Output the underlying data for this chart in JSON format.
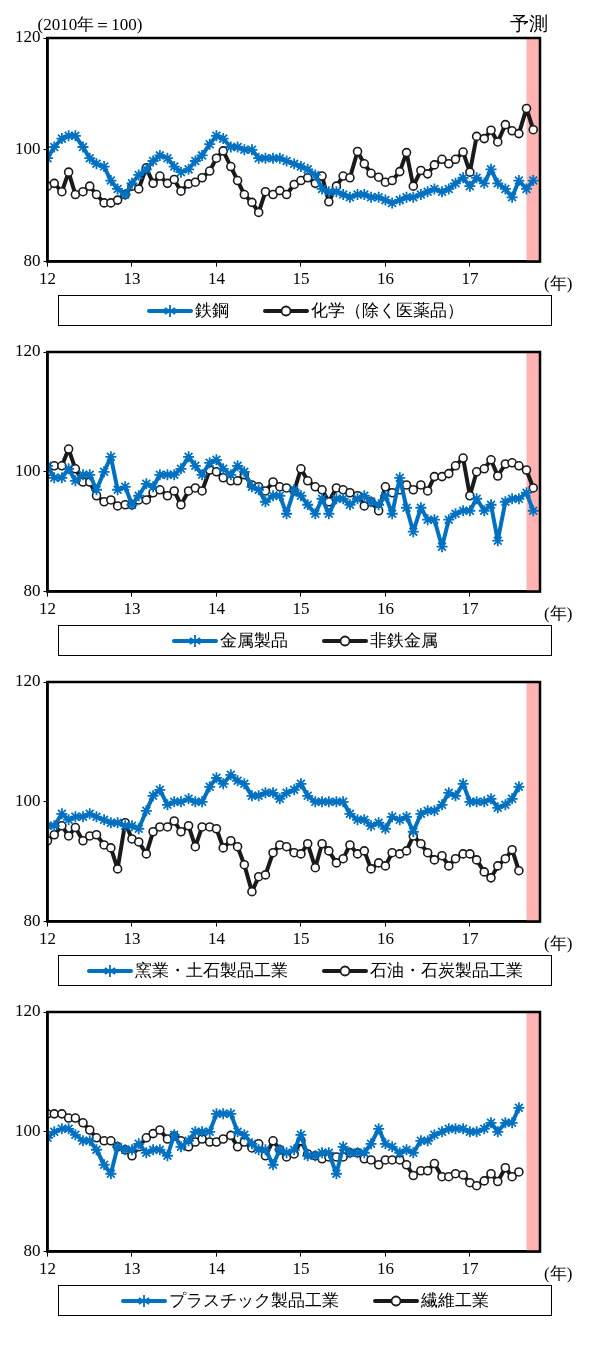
{
  "chart_data": [
    {
      "type": "line",
      "ylabel": "(2010年＝100)",
      "xlabel": "(年)",
      "legend": "bottom",
      "x": [
        12,
        12.08,
        12.17,
        12.25,
        12.33,
        12.42,
        12.5,
        12.58,
        12.67,
        12.75,
        12.83,
        12.92,
        13,
        13.08,
        13.17,
        13.25,
        13.33,
        13.42,
        13.5,
        13.58,
        13.67,
        13.75,
        13.83,
        13.92,
        14,
        14.08,
        14.17,
        14.25,
        14.33,
        14.42,
        14.5,
        14.58,
        14.67,
        14.75,
        14.83,
        14.92,
        15,
        15.08,
        15.17,
        15.25,
        15.33,
        15.42,
        15.5,
        15.58,
        15.67,
        15.75,
        15.83,
        15.92,
        16,
        16.08,
        16.17,
        16.25,
        16.33,
        16.42,
        16.5,
        16.58,
        16.67,
        16.75,
        16.83,
        16.92,
        17,
        17.08,
        17.17,
        17.25,
        17.33,
        17.42,
        17.5,
        17.58,
        17.67,
        17.75
      ],
      "xlim": [
        12,
        17.83
      ],
      "xticks": [
        12,
        13,
        14,
        15,
        16,
        17
      ],
      "ylim": [
        80,
        120
      ],
      "yticks": [
        80,
        100,
        120
      ],
      "bands": [
        {
          "axis": "x",
          "from": 17.67,
          "to": 17.83,
          "label": "予測",
          "color": "#ffb3b3"
        }
      ],
      "series": [
        {
          "name": "鉄鋼",
          "color": "#0070c0",
          "marker": "cross",
          "values": [
            98.5,
            100.5,
            102,
            102.5,
            102.5,
            100.5,
            98.5,
            97.5,
            97,
            94.5,
            93,
            92,
            94,
            95.5,
            96.5,
            98,
            99,
            98.5,
            97,
            96,
            96.5,
            98,
            99,
            101,
            102.5,
            102,
            100.5,
            100.5,
            100,
            100,
            98.5,
            98.5,
            98.5,
            98.5,
            98,
            97.5,
            97,
            96.5,
            95.5,
            93,
            92.5,
            92.5,
            92,
            91.5,
            92,
            92,
            91.5,
            91.5,
            91,
            90.5,
            91,
            91.5,
            91.5,
            92,
            92.5,
            93,
            92.5,
            93,
            94,
            95,
            93.5,
            95,
            94,
            96.5,
            94,
            93,
            91.5,
            94.5,
            93,
            94.5
          ]
        },
        {
          "name": "化学（除く医薬品）",
          "color": "#1a1a1a",
          "marker": "circle",
          "values": [
            93.5,
            94,
            92.5,
            96,
            92,
            92.5,
            93.5,
            92,
            90.5,
            90.5,
            91,
            92,
            93.5,
            93,
            96.8,
            94,
            95.3,
            94,
            94.7,
            92.6,
            93.9,
            94.2,
            95,
            96.2,
            98.5,
            99.8,
            97,
            94.5,
            92,
            90.6,
            88.8,
            92.5,
            92,
            92.7,
            92,
            93.8,
            94.5,
            95,
            94,
            95.3,
            90.7,
            93.5,
            95.3,
            95,
            99.7,
            97.5,
            95.8,
            95.1,
            94.2,
            94.5,
            96.1,
            99.5,
            93.5,
            96.3,
            95.7,
            97.3,
            98.3,
            97.5,
            98.3,
            99.6,
            96,
            102.4,
            102,
            103.5,
            101.4,
            104.5,
            103.4,
            102.9,
            107.4,
            103.6
          ]
        }
      ]
    },
    {
      "type": "line",
      "xlabel": "(年)",
      "legend": "bottom",
      "x": [
        12,
        12.08,
        12.17,
        12.25,
        12.33,
        12.42,
        12.5,
        12.58,
        12.67,
        12.75,
        12.83,
        12.92,
        13,
        13.08,
        13.17,
        13.25,
        13.33,
        13.42,
        13.5,
        13.58,
        13.67,
        13.75,
        13.83,
        13.92,
        14,
        14.08,
        14.17,
        14.25,
        14.33,
        14.42,
        14.5,
        14.58,
        14.67,
        14.75,
        14.83,
        14.92,
        15,
        15.08,
        15.17,
        15.25,
        15.33,
        15.42,
        15.5,
        15.58,
        15.67,
        15.75,
        15.83,
        15.92,
        16,
        16.08,
        16.17,
        16.25,
        16.33,
        16.42,
        16.5,
        16.58,
        16.67,
        16.75,
        16.83,
        16.92,
        17,
        17.08,
        17.17,
        17.25,
        17.33,
        17.42,
        17.5,
        17.58,
        17.67,
        17.75
      ],
      "xlim": [
        12,
        17.83
      ],
      "xticks": [
        12,
        13,
        14,
        15,
        16,
        17
      ],
      "ylim": [
        80,
        120
      ],
      "yticks": [
        80,
        100,
        120
      ],
      "bands": [
        {
          "axis": "x",
          "from": 17.67,
          "to": 17.83,
          "color": "#ffb3b3"
        }
      ],
      "series": [
        {
          "name": "金属製品",
          "color": "#0070c0",
          "marker": "cross",
          "values": [
            101,
            99,
            99,
            100.5,
            98.5,
            99.5,
            99.5,
            97,
            100,
            102.5,
            97,
            97.5,
            94.5,
            96,
            98,
            97.5,
            99.5,
            99.5,
            99.5,
            100.5,
            102.5,
            101,
            99.5,
            101.5,
            102,
            100.5,
            99.5,
            101,
            100,
            97.5,
            97,
            95,
            96,
            96,
            93,
            97,
            96,
            94.5,
            93,
            95.5,
            93,
            95.5,
            95.5,
            94.5,
            95.5,
            96,
            95,
            94.5,
            96,
            93,
            99,
            94,
            90,
            94,
            92,
            92,
            87.5,
            92,
            93,
            93.5,
            93.5,
            95.5,
            93.5,
            94.5,
            88.5,
            95,
            95.5,
            95.5,
            96.5,
            93.5
          ]
        },
        {
          "name": "非鉄金属",
          "color": "#1a1a1a",
          "marker": "circle",
          "values": [
            100,
            101,
            101,
            103.8,
            100.5,
            98.3,
            98.3,
            96,
            95,
            95.3,
            94.3,
            94.5,
            94.5,
            95.3,
            95.3,
            96.5,
            97,
            96,
            96.8,
            94.5,
            96.8,
            97.3,
            96.8,
            100.3,
            100,
            99,
            98.5,
            98.5,
            99.5,
            97.8,
            97.5,
            96.8,
            98.3,
            97.5,
            97.3,
            96.8,
            100.5,
            98.5,
            97.5,
            97,
            95,
            97.3,
            97,
            96.5,
            96,
            94.3,
            95,
            93.5,
            97.5,
            96.5,
            97,
            97.8,
            97,
            97.8,
            96.8,
            99.2,
            99.2,
            99.7,
            101,
            102.3,
            96,
            100,
            100.5,
            102,
            99.3,
            101.3,
            101.5,
            101,
            100.3,
            97.3
          ]
        }
      ]
    },
    {
      "type": "line",
      "xlabel": "(年)",
      "legend": "bottom",
      "x": [
        12,
        12.08,
        12.17,
        12.25,
        12.33,
        12.42,
        12.5,
        12.58,
        12.67,
        12.75,
        12.83,
        12.92,
        13,
        13.08,
        13.17,
        13.25,
        13.33,
        13.42,
        13.5,
        13.58,
        13.67,
        13.75,
        13.83,
        13.92,
        14,
        14.08,
        14.17,
        14.25,
        14.33,
        14.42,
        14.5,
        14.58,
        14.67,
        14.75,
        14.83,
        14.92,
        15,
        15.08,
        15.17,
        15.25,
        15.33,
        15.42,
        15.5,
        15.58,
        15.67,
        15.75,
        15.83,
        15.92,
        16,
        16.08,
        16.17,
        16.25,
        16.33,
        16.42,
        16.5,
        16.58,
        16.67,
        16.75,
        16.83,
        16.92,
        17,
        17.08,
        17.17,
        17.25,
        17.33,
        17.42,
        17.5,
        17.58
      ],
      "xlim": [
        12,
        17.83
      ],
      "xticks": [
        12,
        13,
        14,
        15,
        16,
        17
      ],
      "ylim": [
        80,
        120
      ],
      "yticks": [
        80,
        100,
        120
      ],
      "bands": [
        {
          "axis": "x",
          "from": 17.67,
          "to": 17.83,
          "color": "#ffb3b3"
        }
      ],
      "series": [
        {
          "name": "窯業・土石製品工業",
          "color": "#0070c0",
          "marker": "cross",
          "values": [
            96,
            96,
            98,
            97,
            97.5,
            97.5,
            98,
            97.5,
            97,
            96.5,
            96.5,
            96,
            96,
            95.5,
            98.5,
            101,
            102,
            99.5,
            100,
            100,
            100.5,
            100,
            100,
            102.5,
            104,
            103,
            104.5,
            103.5,
            103,
            101,
            101,
            101.5,
            101.5,
            100.5,
            101.5,
            102,
            103,
            101,
            100,
            100,
            100,
            100,
            100,
            98,
            97,
            97,
            96,
            96.5,
            95.5,
            97.5,
            97,
            97.5,
            95,
            98,
            98.5,
            98.5,
            99.5,
            101.5,
            101,
            103,
            100,
            100,
            100,
            100.5,
            99,
            99.5,
            100.5,
            102.5
          ]
        },
        {
          "name": "石油・石炭製品工業",
          "color": "#1a1a1a",
          "marker": "circle",
          "values": [
            93.5,
            94.5,
            96,
            94.3,
            95.7,
            93.5,
            94.3,
            94.5,
            92.8,
            92.3,
            88.8,
            96.5,
            93.8,
            93.3,
            91.3,
            95,
            95.8,
            95.8,
            96.8,
            95,
            96,
            92.5,
            95.8,
            95.8,
            95.5,
            92.3,
            93.5,
            92.5,
            89.5,
            85,
            87.5,
            87.8,
            91.5,
            92.8,
            92.5,
            91.5,
            91.3,
            93,
            89,
            93,
            91.8,
            89.8,
            90.5,
            92.8,
            91.3,
            91.8,
            88.8,
            89.8,
            89.3,
            91.5,
            91.3,
            91.8,
            94.3,
            93,
            91.5,
            90.3,
            91,
            89.3,
            90.5,
            91.3,
            91.3,
            90.3,
            88.3,
            87.3,
            89.3,
            90.5,
            92,
            88.5
          ]
        }
      ]
    },
    {
      "type": "line",
      "xlabel": "(年)",
      "legend": "bottom",
      "x": [
        12,
        12.08,
        12.17,
        12.25,
        12.33,
        12.42,
        12.5,
        12.58,
        12.67,
        12.75,
        12.83,
        12.92,
        13,
        13.08,
        13.17,
        13.25,
        13.33,
        13.42,
        13.5,
        13.58,
        13.67,
        13.75,
        13.83,
        13.92,
        14,
        14.08,
        14.17,
        14.25,
        14.33,
        14.42,
        14.5,
        14.58,
        14.67,
        14.75,
        14.83,
        14.92,
        15,
        15.08,
        15.17,
        15.25,
        15.33,
        15.42,
        15.5,
        15.58,
        15.67,
        15.75,
        15.83,
        15.92,
        16,
        16.08,
        16.17,
        16.25,
        16.33,
        16.42,
        16.5,
        16.58,
        16.67,
        16.75,
        16.83,
        16.92,
        17,
        17.08,
        17.17,
        17.25,
        17.33,
        17.42,
        17.5,
        17.58
      ],
      "xlim": [
        12,
        17.83
      ],
      "xticks": [
        12,
        13,
        14,
        15,
        16,
        17
      ],
      "ylim": [
        80,
        120
      ],
      "yticks": [
        80,
        100,
        120
      ],
      "bands": [
        {
          "axis": "x",
          "from": 17.67,
          "to": 17.83,
          "color": "#ffb3b3"
        }
      ],
      "series": [
        {
          "name": "プラスチック製品工業",
          "color": "#0070c0",
          "marker": "cross",
          "values": [
            99,
            100,
            100.5,
            100.5,
            99.5,
            98.5,
            98.5,
            97,
            94.5,
            93,
            97.5,
            97,
            97,
            98,
            96.5,
            97,
            97,
            96,
            99.5,
            97.5,
            98.5,
            100,
            100,
            100,
            103,
            103,
            103,
            100,
            99.5,
            98,
            97,
            97,
            94.5,
            97,
            96.5,
            97,
            99.5,
            96,
            96,
            96.5,
            96.5,
            93,
            97.5,
            96.5,
            96.5,
            96.5,
            98,
            100.5,
            98,
            97.5,
            96.5,
            97,
            96.5,
            98.5,
            98.5,
            99.5,
            100,
            100.5,
            100.5,
            100.5,
            100,
            100,
            100.5,
            101.5,
            100,
            101.5,
            101.5,
            104
          ]
        },
        {
          "name": "繊維工業",
          "color": "#1a1a1a",
          "marker": "circle",
          "values": [
            103,
            103,
            103,
            102.3,
            102.3,
            101.5,
            100.3,
            99,
            98.5,
            98.5,
            97.5,
            97,
            96,
            97.5,
            99,
            99.7,
            100.3,
            98.8,
            99.3,
            98.5,
            97.5,
            98.3,
            98.8,
            98.3,
            98.3,
            98.8,
            99.4,
            97.5,
            98.3,
            97.3,
            98,
            96,
            98.5,
            97,
            95.8,
            96.3,
            98.5,
            96.3,
            96,
            95.5,
            95.8,
            95.8,
            95.8,
            96.5,
            96.5,
            95.5,
            95.3,
            94.5,
            95.3,
            95.3,
            95.3,
            94.5,
            92.7,
            93.5,
            93.5,
            94.7,
            92.5,
            92.5,
            93,
            92.8,
            91.5,
            91,
            91.8,
            93,
            91.7,
            94,
            92.5,
            93.3
          ]
        }
      ]
    }
  ]
}
